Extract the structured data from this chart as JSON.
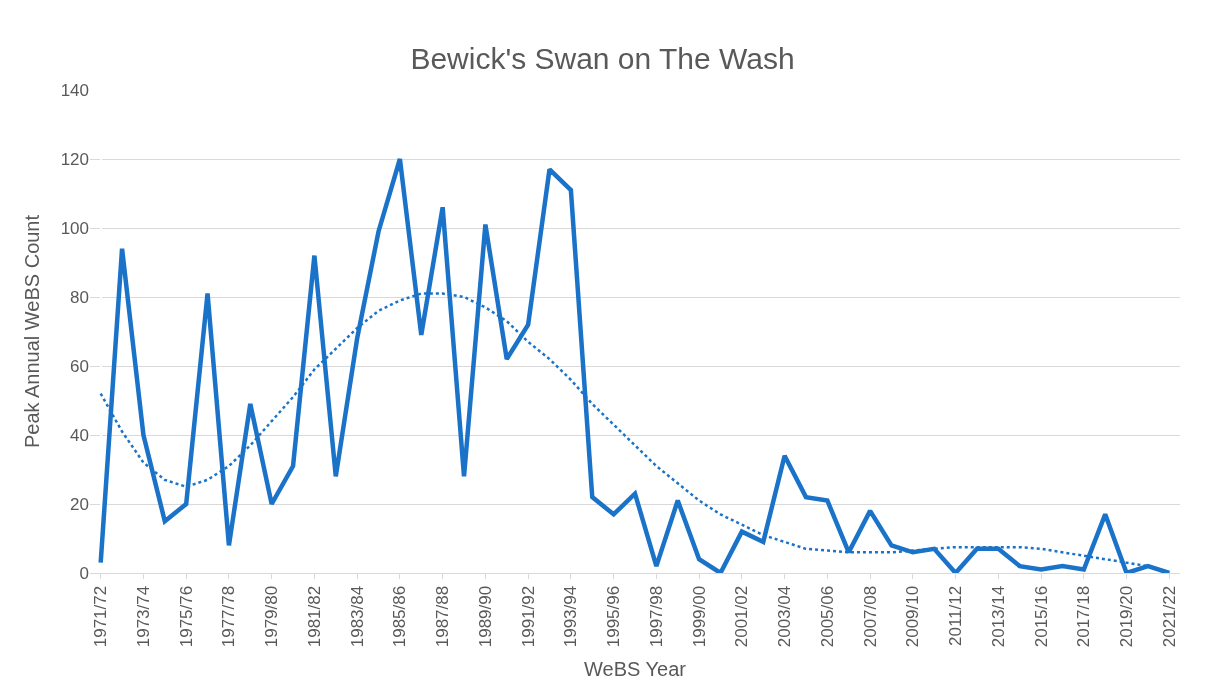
{
  "chart_data": {
    "type": "line",
    "title": "Bewick's Swan on The Wash",
    "xlabel": "WeBS Year",
    "ylabel": "Peak Annual WeBS Count",
    "categories": [
      "1971/72",
      null,
      "1973/74",
      null,
      "1975/76",
      null,
      "1977/78",
      null,
      "1979/80",
      null,
      "1981/82",
      null,
      "1983/84",
      null,
      "1985/86",
      null,
      "1987/88",
      null,
      "1989/90",
      null,
      "1991/92",
      null,
      "1993/94",
      null,
      "1995/96",
      null,
      "1997/98",
      null,
      "1999/00",
      null,
      "2001/02",
      null,
      "2003/04",
      null,
      "2005/06",
      null,
      "2007/08",
      null,
      "2009/10",
      null,
      "2011/12",
      null,
      "2013/14",
      null,
      "2015/16",
      null,
      "2017/18",
      null,
      "2019/20",
      null,
      "2021/22"
    ],
    "series": [
      {
        "color": "#1a73c8",
        "line_style": "solid",
        "values": [
          3,
          94,
          40,
          15,
          20,
          81,
          8,
          49,
          20,
          31,
          92,
          28,
          68,
          99,
          120,
          69,
          106,
          28,
          101,
          62,
          72,
          117,
          111,
          22,
          17,
          23,
          2,
          21,
          4,
          0,
          12,
          9,
          34,
          22,
          21,
          6,
          18,
          8,
          6,
          7,
          0,
          7,
          7,
          2,
          1,
          2,
          1,
          17,
          0,
          2,
          0
        ]
      },
      {
        "color": "#1a73c8",
        "line_style": "dotted",
        "values": [
          52,
          41,
          32,
          27,
          25,
          27,
          31,
          37,
          44,
          51,
          59,
          65,
          71,
          76,
          79,
          81,
          81,
          80,
          77,
          73,
          67,
          62,
          56,
          49,
          43,
          37,
          31,
          26,
          21,
          17,
          14,
          11,
          9,
          7,
          6.5,
          6,
          6,
          6,
          6.5,
          7,
          7.5,
          7.5,
          7.5,
          7.5,
          7,
          6,
          5,
          4,
          3,
          2,
          0
        ]
      }
    ],
    "ylim": [
      0,
      140
    ],
    "yticks": [
      0,
      20,
      40,
      60,
      80,
      100,
      120,
      140
    ],
    "grid": "y",
    "marker": "none"
  }
}
